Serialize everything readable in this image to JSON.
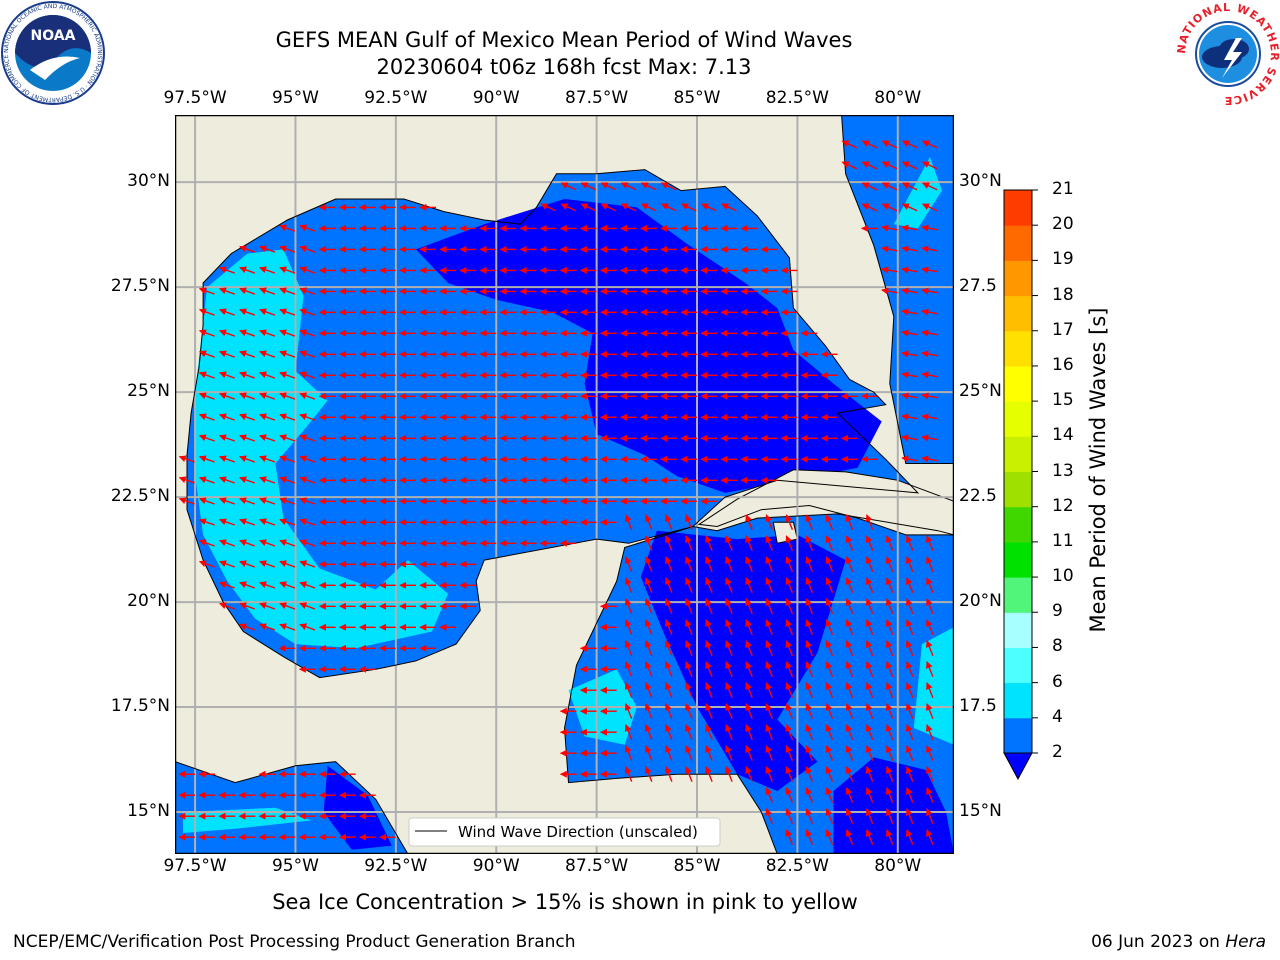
{
  "header": {
    "title_line1": "GEFS MEAN Gulf of Mexico Mean Period of Wind Waves",
    "title_line2": "20230604 t06z 168h fcst   Max: 7.13",
    "noaa_logo_text": "NOAA",
    "noaa_ring_text": "NATIONAL OCEANIC AND ATMOSPHERIC ADMINISTRATION · U.S. DEPARTMENT OF COMMERCE",
    "nws_ring_text": "NATIONAL WEATHER SERVICE"
  },
  "map": {
    "region": "Gulf of Mexico",
    "lon_labels": [
      "97.5°W",
      "95°W",
      "92.5°W",
      "90°W",
      "87.5°W",
      "85°W",
      "82.5°W",
      "80°W"
    ],
    "lat_labels": [
      "30°N",
      "27.5°N",
      "25°N",
      "22.5°N",
      "20°N",
      "17.5°N",
      "15°N"
    ],
    "lat_labels_right": [
      "30°N",
      "27.5",
      "25°N",
      "22.5",
      "20°N",
      "17.5",
      "15°N"
    ],
    "lon_range": [
      -98,
      -78.6
    ],
    "lat_range": [
      14.0,
      31.6
    ],
    "legend_label": "Wind Wave Direction (unscaled)",
    "land_color": "#eeecdc",
    "arrow_color": "#ff0000",
    "grid": true
  },
  "colorbar": {
    "label": "Mean Period of Wind Waves [s]",
    "ticks": [
      "2",
      "4",
      "6",
      "8",
      "9",
      "10",
      "11",
      "12",
      "13",
      "14",
      "15",
      "16",
      "17",
      "18",
      "19",
      "20",
      "21"
    ],
    "colors": [
      "#0073ff",
      "#00e3ff",
      "#4dffff",
      "#a8ffff",
      "#50f57a",
      "#00e100",
      "#40d700",
      "#9fe000",
      "#c8f000",
      "#e6ff00",
      "#ffff00",
      "#ffe000",
      "#ffbe00",
      "#ff9800",
      "#ff6a00",
      "#ff3c00",
      "#ff0000"
    ],
    "extend_color": "#0000ff"
  },
  "footer": {
    "ice_note": "Sea Ice Concentration > 15% is shown in pink to yellow",
    "left": "NCEP/EMC/Verification Post Processing Product Generation Branch",
    "date": "06 Jun 2023 on ",
    "host": "Hera"
  }
}
